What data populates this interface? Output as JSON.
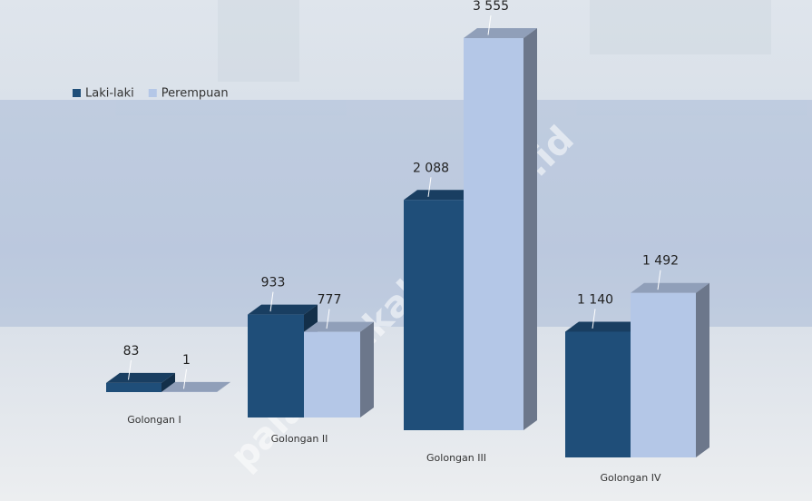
{
  "chart_data": {
    "type": "bar3d",
    "categories": [
      "Golongan I",
      "Golongan II",
      "Golongan III",
      "Golongan IV"
    ],
    "series": [
      {
        "name": "Laki-laki",
        "color": "#1f4e79",
        "values": [
          83,
          933,
          2088,
          1140
        ],
        "value_labels": [
          "83",
          "933",
          "2 088",
          "1 140"
        ]
      },
      {
        "name": "Perempuan",
        "color": "#b4c7e7",
        "values": [
          1,
          777,
          3555,
          1492
        ],
        "value_labels": [
          "1",
          "777",
          "3 555",
          "1 492"
        ]
      }
    ],
    "legend": "top-left",
    "watermark": "palangkakab.bps.go.id"
  }
}
